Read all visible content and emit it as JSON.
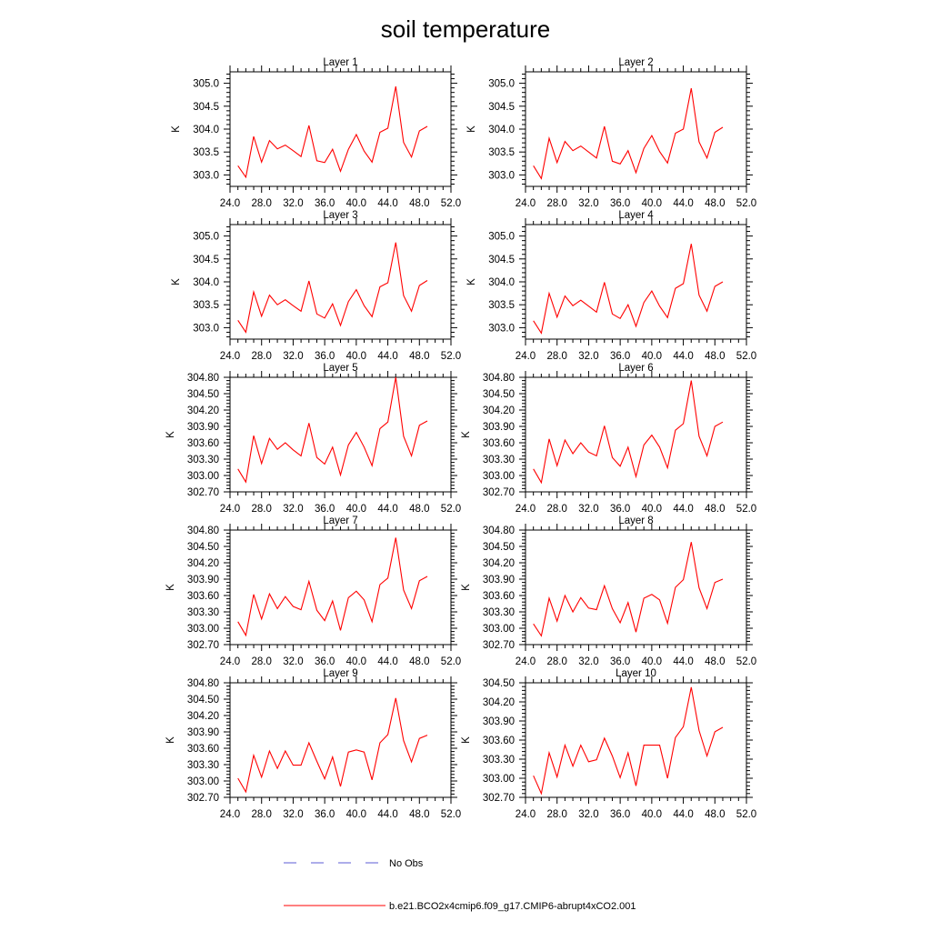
{
  "title": "soil temperature",
  "chart_data": [
    {
      "type": "line",
      "title": "Layer 1",
      "xlabel": "",
      "ylabel": "K",
      "xlim": [
        24.0,
        52.0
      ],
      "ylim": [
        302.75,
        305.25
      ],
      "xticks": [
        "24.0",
        "28.0",
        "32.0",
        "36.0",
        "40.0",
        "44.0",
        "48.0",
        "52.0"
      ],
      "yticks": [
        "303.0",
        "303.5",
        "304.0",
        "304.5",
        "305.0"
      ],
      "series": [
        {
          "name": "b.e21.BCO2x4cmip6.f09_g17.CMIP6-abrupt4xCO2.001",
          "x": [
            25,
            26,
            27,
            28,
            29,
            30,
            31,
            32,
            33,
            34,
            35,
            36,
            37,
            38,
            39,
            40,
            41,
            42,
            43,
            44,
            45,
            46,
            47,
            48,
            49
          ],
          "y": [
            303.2,
            302.95,
            303.84,
            303.28,
            303.75,
            303.57,
            303.65,
            303.53,
            303.4,
            304.08,
            303.31,
            303.27,
            303.56,
            303.08,
            303.56,
            303.88,
            303.52,
            303.28,
            303.93,
            304.02,
            304.93,
            303.71,
            303.39,
            303.96,
            304.06
          ]
        }
      ]
    },
    {
      "type": "line",
      "title": "Layer 2",
      "xlabel": "",
      "ylabel": "K",
      "xlim": [
        24.0,
        52.0
      ],
      "ylim": [
        302.75,
        305.25
      ],
      "xticks": [
        "24.0",
        "28.0",
        "32.0",
        "36.0",
        "40.0",
        "44.0",
        "48.0",
        "52.0"
      ],
      "yticks": [
        "303.0",
        "303.5",
        "304.0",
        "304.5",
        "305.0"
      ],
      "series": [
        {
          "name": "b.e21.BCO2x4cmip6.f09_g17.CMIP6-abrupt4xCO2.001",
          "x": [
            25,
            26,
            27,
            28,
            29,
            30,
            31,
            32,
            33,
            34,
            35,
            36,
            37,
            38,
            39,
            40,
            41,
            42,
            43,
            44,
            45,
            46,
            47,
            48,
            49
          ],
          "y": [
            303.2,
            302.92,
            303.8,
            303.27,
            303.73,
            303.53,
            303.63,
            303.5,
            303.37,
            304.06,
            303.3,
            303.24,
            303.53,
            303.05,
            303.58,
            303.86,
            303.51,
            303.26,
            303.91,
            304.0,
            304.89,
            303.72,
            303.37,
            303.93,
            304.04
          ]
        }
      ]
    },
    {
      "type": "line",
      "title": "Layer 3",
      "xlabel": "",
      "ylabel": "K",
      "xlim": [
        24.0,
        52.0
      ],
      "ylim": [
        302.75,
        305.25
      ],
      "xticks": [
        "24.0",
        "28.0",
        "32.0",
        "36.0",
        "40.0",
        "44.0",
        "48.0",
        "52.0"
      ],
      "yticks": [
        "303.0",
        "303.5",
        "304.0",
        "304.5",
        "305.0"
      ],
      "series": [
        {
          "name": "b.e21.BCO2x4cmip6.f09_g17.CMIP6-abrupt4xCO2.001",
          "x": [
            25,
            26,
            27,
            28,
            29,
            30,
            31,
            32,
            33,
            34,
            35,
            36,
            37,
            38,
            39,
            40,
            41,
            42,
            43,
            44,
            45,
            46,
            47,
            48,
            49
          ],
          "y": [
            303.16,
            302.9,
            303.78,
            303.25,
            303.71,
            303.5,
            303.61,
            303.48,
            303.36,
            304.02,
            303.3,
            303.21,
            303.52,
            303.05,
            303.57,
            303.83,
            303.48,
            303.24,
            303.89,
            303.98,
            304.86,
            303.7,
            303.36,
            303.92,
            304.03
          ]
        }
      ]
    },
    {
      "type": "line",
      "title": "Layer 4",
      "xlabel": "",
      "ylabel": "K",
      "xlim": [
        24.0,
        52.0
      ],
      "ylim": [
        302.75,
        305.25
      ],
      "xticks": [
        "24.0",
        "28.0",
        "32.0",
        "36.0",
        "40.0",
        "44.0",
        "48.0",
        "52.0"
      ],
      "yticks": [
        "303.0",
        "303.5",
        "304.0",
        "304.5",
        "305.0"
      ],
      "series": [
        {
          "name": "b.e21.BCO2x4cmip6.f09_g17.CMIP6-abrupt4xCO2.001",
          "x": [
            25,
            26,
            27,
            28,
            29,
            30,
            31,
            32,
            33,
            34,
            35,
            36,
            37,
            38,
            39,
            40,
            41,
            42,
            43,
            44,
            45,
            46,
            47,
            48,
            49
          ],
          "y": [
            303.15,
            302.88,
            303.75,
            303.23,
            303.69,
            303.48,
            303.6,
            303.47,
            303.34,
            303.99,
            303.3,
            303.2,
            303.5,
            303.03,
            303.55,
            303.8,
            303.47,
            303.22,
            303.86,
            303.96,
            304.83,
            303.71,
            303.36,
            303.9,
            304.0
          ]
        }
      ]
    },
    {
      "type": "line",
      "title": "Layer 5",
      "xlabel": "",
      "ylabel": "K",
      "xlim": [
        24.0,
        52.0
      ],
      "ylim": [
        302.7,
        304.8
      ],
      "xticks": [
        "24.0",
        "28.0",
        "32.0",
        "36.0",
        "40.0",
        "44.0",
        "48.0",
        "52.0"
      ],
      "yticks": [
        "302.70",
        "303.00",
        "303.30",
        "303.60",
        "303.90",
        "304.20",
        "304.50",
        "304.80"
      ],
      "series": [
        {
          "name": "b.e21.BCO2x4cmip6.f09_g17.CMIP6-abrupt4xCO2.001",
          "x": [
            25,
            26,
            27,
            28,
            29,
            30,
            31,
            32,
            33,
            34,
            35,
            36,
            37,
            38,
            39,
            40,
            41,
            42,
            43,
            44,
            45,
            46,
            47,
            48,
            49
          ],
          "y": [
            303.12,
            302.88,
            303.73,
            303.22,
            303.68,
            303.48,
            303.6,
            303.47,
            303.36,
            303.96,
            303.33,
            303.21,
            303.52,
            303.01,
            303.56,
            303.79,
            303.52,
            303.18,
            303.86,
            303.98,
            304.8,
            303.72,
            303.36,
            303.92,
            304.0
          ]
        }
      ]
    },
    {
      "type": "line",
      "title": "Layer 6",
      "xlabel": "",
      "ylabel": "K",
      "xlim": [
        24.0,
        52.0
      ],
      "ylim": [
        302.7,
        304.8
      ],
      "xticks": [
        "24.0",
        "28.0",
        "32.0",
        "36.0",
        "40.0",
        "44.0",
        "48.0",
        "52.0"
      ],
      "yticks": [
        "302.70",
        "303.00",
        "303.30",
        "303.60",
        "303.90",
        "304.20",
        "304.50",
        "304.80"
      ],
      "series": [
        {
          "name": "b.e21.BCO2x4cmip6.f09_g17.CMIP6-abrupt4xCO2.001",
          "x": [
            25,
            26,
            27,
            28,
            29,
            30,
            31,
            32,
            33,
            34,
            35,
            36,
            37,
            38,
            39,
            40,
            41,
            42,
            43,
            44,
            45,
            46,
            47,
            48,
            49
          ],
          "y": [
            303.12,
            302.87,
            303.67,
            303.18,
            303.65,
            303.4,
            303.6,
            303.43,
            303.36,
            303.91,
            303.33,
            303.17,
            303.52,
            302.98,
            303.56,
            303.74,
            303.52,
            303.14,
            303.83,
            303.95,
            304.74,
            303.72,
            303.36,
            303.9,
            303.98
          ]
        }
      ]
    },
    {
      "type": "line",
      "title": "Layer 7",
      "xlabel": "",
      "ylabel": "K",
      "xlim": [
        24.0,
        52.0
      ],
      "ylim": [
        302.7,
        304.8
      ],
      "xticks": [
        "24.0",
        "28.0",
        "32.0",
        "36.0",
        "40.0",
        "44.0",
        "48.0",
        "52.0"
      ],
      "yticks": [
        "302.70",
        "303.00",
        "303.30",
        "303.60",
        "303.90",
        "304.20",
        "304.50",
        "304.80"
      ],
      "series": [
        {
          "name": "b.e21.BCO2x4cmip6.f09_g17.CMIP6-abrupt4xCO2.001",
          "x": [
            25,
            26,
            27,
            28,
            29,
            30,
            31,
            32,
            33,
            34,
            35,
            36,
            37,
            38,
            39,
            40,
            41,
            42,
            43,
            44,
            45,
            46,
            47,
            48,
            49
          ],
          "y": [
            303.12,
            302.87,
            303.62,
            303.17,
            303.63,
            303.36,
            303.58,
            303.4,
            303.34,
            303.86,
            303.33,
            303.14,
            303.5,
            302.96,
            303.56,
            303.68,
            303.52,
            303.12,
            303.8,
            303.92,
            304.66,
            303.7,
            303.36,
            303.87,
            303.95
          ]
        }
      ]
    },
    {
      "type": "line",
      "title": "Layer 8",
      "xlabel": "",
      "ylabel": "K",
      "xlim": [
        24.0,
        52.0
      ],
      "ylim": [
        302.7,
        304.8
      ],
      "xticks": [
        "24.0",
        "28.0",
        "32.0",
        "36.0",
        "40.0",
        "44.0",
        "48.0",
        "52.0"
      ],
      "yticks": [
        "302.70",
        "303.00",
        "303.30",
        "303.60",
        "303.90",
        "304.20",
        "304.50",
        "304.80"
      ],
      "series": [
        {
          "name": "b.e21.BCO2x4cmip6.f09_g17.CMIP6-abrupt4xCO2.001",
          "x": [
            25,
            26,
            27,
            28,
            29,
            30,
            31,
            32,
            33,
            34,
            35,
            36,
            37,
            38,
            39,
            40,
            41,
            42,
            43,
            44,
            45,
            46,
            47,
            48,
            49
          ],
          "y": [
            303.08,
            302.86,
            303.55,
            303.13,
            303.6,
            303.3,
            303.56,
            303.37,
            303.34,
            303.78,
            303.36,
            303.1,
            303.47,
            302.93,
            303.55,
            303.62,
            303.52,
            303.09,
            303.75,
            303.89,
            304.58,
            303.74,
            303.36,
            303.84,
            303.9
          ]
        }
      ]
    },
    {
      "type": "line",
      "title": "Layer 9",
      "xlabel": "",
      "ylabel": "K",
      "xlim": [
        24.0,
        52.0
      ],
      "ylim": [
        302.7,
        304.8
      ],
      "xticks": [
        "24.0",
        "28.0",
        "32.0",
        "36.0",
        "40.0",
        "44.0",
        "48.0",
        "52.0"
      ],
      "yticks": [
        "302.70",
        "303.00",
        "303.30",
        "303.60",
        "303.90",
        "304.20",
        "304.50",
        "304.80"
      ],
      "series": [
        {
          "name": "b.e21.BCO2x4cmip6.f09_g17.CMIP6-abrupt4xCO2.001",
          "x": [
            25,
            26,
            27,
            28,
            29,
            30,
            31,
            32,
            33,
            34,
            35,
            36,
            37,
            38,
            39,
            40,
            41,
            42,
            43,
            44,
            45,
            46,
            47,
            48,
            49
          ],
          "y": [
            303.05,
            302.8,
            303.47,
            303.07,
            303.55,
            303.23,
            303.55,
            303.29,
            303.29,
            303.7,
            303.36,
            303.04,
            303.44,
            302.9,
            303.53,
            303.57,
            303.53,
            303.02,
            303.7,
            303.85,
            304.52,
            303.74,
            303.35,
            303.78,
            303.84
          ]
        }
      ]
    },
    {
      "type": "line",
      "title": "Layer 10",
      "xlabel": "",
      "ylabel": "K",
      "xlim": [
        24.0,
        52.0
      ],
      "ylim": [
        302.7,
        304.5
      ],
      "xticks": [
        "24.0",
        "28.0",
        "32.0",
        "36.0",
        "40.0",
        "44.0",
        "48.0",
        "52.0"
      ],
      "yticks": [
        "302.70",
        "303.00",
        "303.30",
        "303.60",
        "303.90",
        "304.20",
        "304.50"
      ],
      "series": [
        {
          "name": "b.e21.BCO2x4cmip6.f09_g17.CMIP6-abrupt4xCO2.001",
          "x": [
            25,
            26,
            27,
            28,
            29,
            30,
            31,
            32,
            33,
            34,
            35,
            36,
            37,
            38,
            39,
            40,
            41,
            42,
            43,
            44,
            45,
            46,
            47,
            48,
            49
          ],
          "y": [
            303.04,
            302.76,
            303.4,
            303.02,
            303.52,
            303.19,
            303.52,
            303.26,
            303.29,
            303.63,
            303.35,
            303.01,
            303.4,
            302.88,
            303.52,
            303.52,
            303.52,
            303.0,
            303.64,
            303.81,
            304.43,
            303.75,
            303.35,
            303.73,
            303.8
          ]
        }
      ]
    }
  ],
  "legend": [
    {
      "label": "No Obs",
      "color": "#5b5bd6",
      "dash": true
    },
    {
      "label": "b.e21.BCO2x4cmip6.f09_g17.CMIP6-abrupt4xCO2.001",
      "color": "#ff0000",
      "dash": false
    }
  ],
  "colors": {
    "series": "#ff0000",
    "no_obs": "#5b5bd6",
    "axis": "#000000"
  }
}
